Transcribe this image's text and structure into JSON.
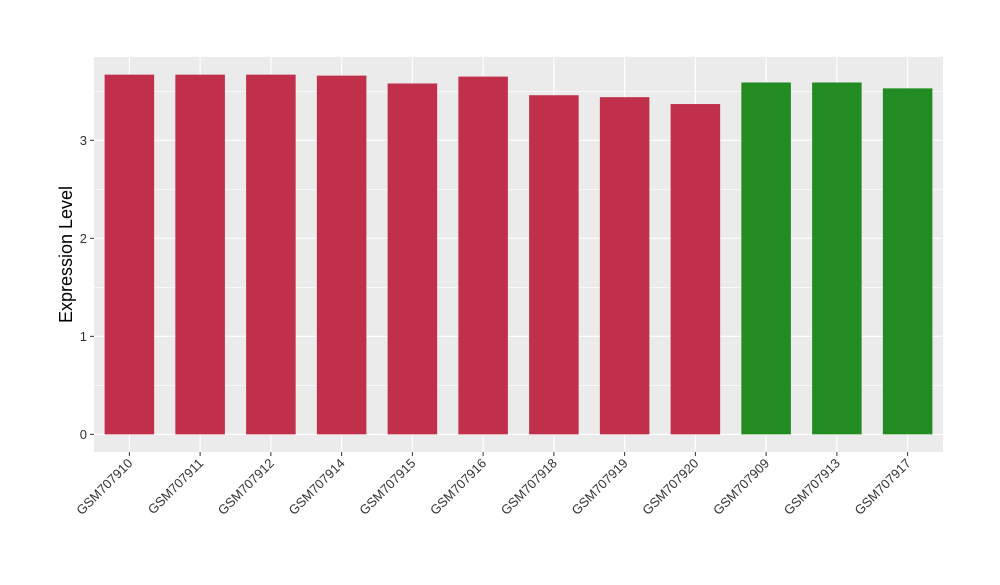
{
  "chart_data": {
    "type": "bar",
    "ylabel": "Expression Level",
    "xlabel": "",
    "categories": [
      "GSM707910",
      "GSM707911",
      "GSM707912",
      "GSM707914",
      "GSM707915",
      "GSM707916",
      "GSM707918",
      "GSM707919",
      "GSM707920",
      "GSM707909",
      "GSM707913",
      "GSM707917"
    ],
    "values": [
      3.67,
      3.67,
      3.67,
      3.66,
      3.58,
      3.65,
      3.46,
      3.44,
      3.37,
      3.59,
      3.59,
      3.53
    ],
    "bar_colors": [
      "#c1304b",
      "#c1304b",
      "#c1304b",
      "#c1304b",
      "#c1304b",
      "#c1304b",
      "#c1304b",
      "#c1304b",
      "#c1304b",
      "#228b22",
      "#228b22",
      "#228b22"
    ],
    "yticks": [
      0,
      1,
      2,
      3
    ],
    "ylim": [
      -0.18,
      3.85
    ],
    "grid": true,
    "legend": "none",
    "panel_background": "#ebebeb",
    "gridline_color": "#ffffff"
  }
}
